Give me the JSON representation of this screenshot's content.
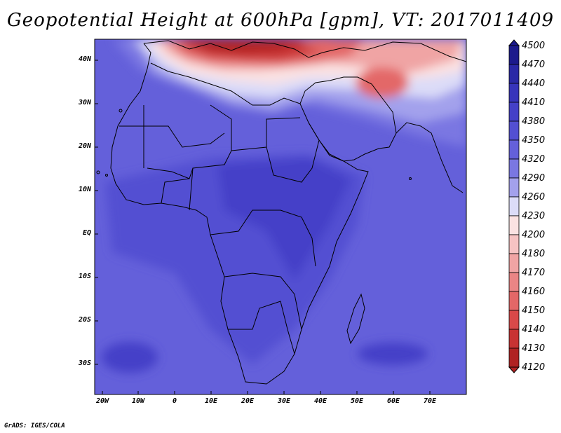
{
  "title": "Geopotential Height at 600hPa [gpm], VT: 2017011409",
  "map": {
    "y_axis_labels": [
      "40N",
      "30N",
      "20N",
      "10N",
      "EQ",
      "10S",
      "20S",
      "30S"
    ],
    "x_axis_labels": [
      "20W",
      "10W",
      "0",
      "10E",
      "20E",
      "30E",
      "40E",
      "50E",
      "60E",
      "70E"
    ],
    "lon_range": [
      -22,
      80
    ],
    "lat_range": [
      -37,
      45
    ]
  },
  "colorbar": {
    "levels": [
      "4500",
      "4470",
      "4440",
      "4410",
      "4380",
      "4350",
      "4320",
      "4290",
      "4260",
      "4230",
      "4200",
      "4180",
      "4170",
      "4160",
      "4150",
      "4140",
      "4130",
      "4120"
    ],
    "colors": [
      "#1c1a8c",
      "#2a28a6",
      "#3734bb",
      "#4440c8",
      "#534fd2",
      "#6460da",
      "#7a77e2",
      "#a3a1ec",
      "#dcdcf8",
      "#fbe2e2",
      "#f6c3c3",
      "#f0a4a4",
      "#ea8585",
      "#e36767",
      "#d94949",
      "#c83333",
      "#b02222"
    ],
    "top_color": "#1c1a8c",
    "bottom_color": "#b02222"
  },
  "credit": "GrADS: IGES/COLA"
}
